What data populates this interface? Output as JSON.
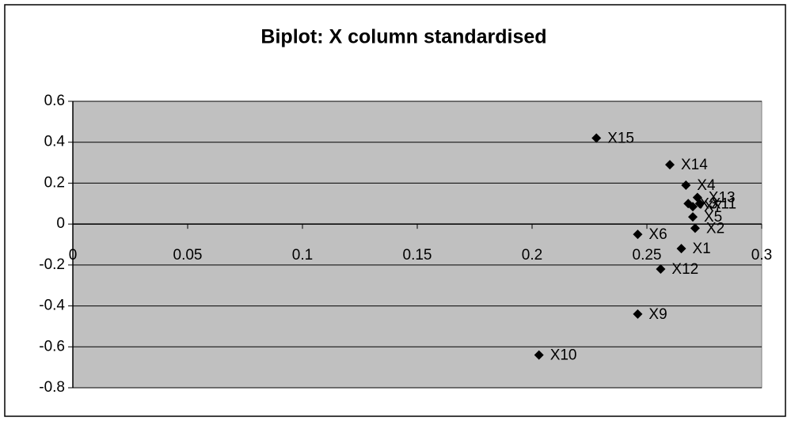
{
  "chart_data": {
    "type": "scatter",
    "title": "Biplot: X column standardised",
    "labels": [
      "X15",
      "X14",
      "X4",
      "X13",
      "X11",
      "X7",
      "X3",
      "X5",
      "X2",
      "X1",
      "X6",
      "X12",
      "X9",
      "X10"
    ],
    "x": [
      0.228,
      0.26,
      0.267,
      0.272,
      0.273,
      0.27,
      0.268,
      0.27,
      0.271,
      0.265,
      0.246,
      0.256,
      0.246,
      0.203
    ],
    "y": [
      0.42,
      0.29,
      0.19,
      0.13,
      0.1,
      0.085,
      0.1,
      0.035,
      -0.02,
      -0.12,
      -0.05,
      -0.22,
      -0.44,
      -0.64
    ],
    "color": "#000000",
    "xlim": [
      0,
      0.3
    ],
    "xticks": [
      0,
      0.05,
      0.1,
      0.15,
      0.2,
      0.25,
      0.3
    ],
    "ylim": [
      -0.8,
      0.6
    ],
    "yticks": [
      -0.8,
      -0.6,
      -0.4,
      -0.2,
      0,
      0.2,
      0.4,
      0.6
    ],
    "grid": true
  }
}
